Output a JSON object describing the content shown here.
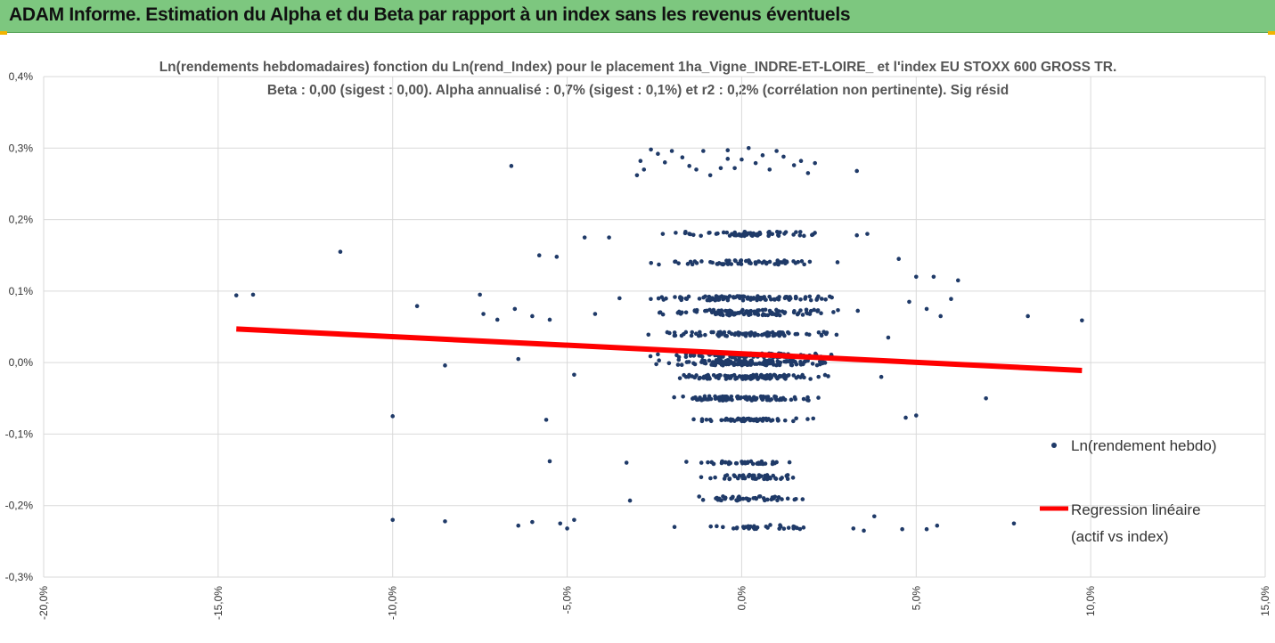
{
  "banner": {
    "title": "ADAM Informe. Estimation du Alpha et du Beta par rapport à un index sans les revenus éventuels",
    "accent": "#f2b400",
    "background": "#7dc77f"
  },
  "chart_data": {
    "type": "scatter",
    "title": "Ln(rendements hebdomadaires) fonction du Ln(rend_Index) pour le placement 1ha_Vigne_INDRE-ET-LOIRE_ et l'index EU STOXX 600 GROSS TR.",
    "subtitle": "Beta : 0,00 (sigest : 0,00). Alpha annualisé : 0,7% (sigest : 0,1%) et r2 : 0,2% (corrélation non pertinente). Sig résid",
    "xlabel": "",
    "ylabel": "",
    "xlim": [
      -0.2,
      0.15
    ],
    "ylim": [
      -0.003,
      0.004
    ],
    "x_ticks": [
      "-20,0%",
      "-15,0%",
      "-10,0%",
      "-5,0%",
      "0,0%",
      "5,0%",
      "10,0%",
      "15,0%"
    ],
    "y_ticks": [
      "0,4%",
      "0,3%",
      "0,2%",
      "0,1%",
      "0,0%",
      "-0,1%",
      "-0,2%",
      "-0,3%"
    ],
    "grid": true,
    "legend_position": "right",
    "series": [
      {
        "name": "Ln(rendement hebdo)",
        "kind": "scatter",
        "color": "#1f3a68",
        "points": [
          [
            -0.1448,
            0.00094
          ],
          [
            -0.14,
            0.00095
          ],
          [
            -0.115,
            0.00155
          ],
          [
            -0.093,
            0.00079
          ],
          [
            -0.085,
            -4e-05
          ],
          [
            -0.1,
            -0.00075
          ],
          [
            -0.1,
            -0.0022
          ],
          [
            -0.085,
            -0.00222
          ],
          [
            -0.075,
            0.00095
          ],
          [
            -0.074,
            0.00068
          ],
          [
            -0.07,
            0.0006
          ],
          [
            -0.065,
            0.00075
          ],
          [
            -0.06,
            0.00065
          ],
          [
            -0.058,
            0.0015
          ],
          [
            -0.055,
            0.0006
          ],
          [
            -0.053,
            0.00148
          ],
          [
            -0.064,
            5e-05
          ],
          [
            -0.066,
            0.00275
          ],
          [
            -0.055,
            -0.00138
          ],
          [
            -0.056,
            -0.0008
          ],
          [
            -0.048,
            -0.00017
          ],
          [
            -0.045,
            0.00175
          ],
          [
            -0.048,
            -0.0022
          ],
          [
            -0.052,
            -0.00225
          ],
          [
            -0.05,
            -0.00232
          ],
          [
            -0.064,
            -0.00228
          ],
          [
            -0.06,
            -0.00223
          ],
          [
            -0.042,
            0.00068
          ],
          [
            -0.038,
            0.00175
          ],
          [
            -0.035,
            0.0009
          ],
          [
            -0.033,
            -0.0014
          ],
          [
            -0.032,
            -0.00193
          ],
          [
            -0.03,
            0.00262
          ],
          [
            -0.029,
            0.00282
          ],
          [
            -0.028,
            0.0027
          ],
          [
            -0.026,
            0.00298
          ],
          [
            -0.024,
            0.00292
          ],
          [
            -0.022,
            0.0028
          ],
          [
            -0.02,
            0.00296
          ],
          [
            -0.017,
            0.00287
          ],
          [
            -0.015,
            0.00275
          ],
          [
            -0.013,
            0.0027
          ],
          [
            -0.011,
            0.00296
          ],
          [
            -0.009,
            0.00262
          ],
          [
            -0.006,
            0.00272
          ],
          [
            -0.004,
            0.00297
          ],
          [
            -0.002,
            0.00272
          ],
          [
            0.0,
            0.00284
          ],
          [
            0.002,
            0.003
          ],
          [
            0.004,
            0.00279
          ],
          [
            0.006,
            0.0029
          ],
          [
            0.008,
            0.0027
          ],
          [
            0.01,
            0.00296
          ],
          [
            0.012,
            0.00288
          ],
          [
            0.015,
            0.00276
          ],
          [
            0.017,
            0.00282
          ],
          [
            0.019,
            0.00265
          ],
          [
            0.021,
            0.00279
          ],
          [
            0.033,
            0.00268
          ],
          [
            -0.004,
            0.00285
          ],
          [
            0.045,
            0.00145
          ],
          [
            0.05,
            0.0012
          ],
          [
            0.055,
            0.0012
          ],
          [
            0.062,
            0.00115
          ],
          [
            0.06,
            0.00089
          ],
          [
            0.053,
            0.00075
          ],
          [
            0.057,
            0.00065
          ],
          [
            0.048,
            0.00085
          ],
          [
            0.05,
            -0.00074
          ],
          [
            0.047,
            -0.00077
          ],
          [
            0.046,
            -0.00233
          ],
          [
            0.053,
            -0.00233
          ],
          [
            0.056,
            -0.00228
          ],
          [
            0.07,
            -0.0005
          ],
          [
            0.078,
            -0.00225
          ],
          [
            0.082,
            0.00065
          ],
          [
            0.0975,
            0.00059
          ],
          [
            0.038,
            -0.00215
          ],
          [
            0.04,
            -0.0002
          ],
          [
            0.042,
            0.00035
          ],
          [
            0.036,
            0.0018
          ],
          [
            0.033,
            0.00178
          ],
          [
            0.035,
            -0.00235
          ],
          [
            0.032,
            -0.00232
          ]
        ]
      },
      {
        "name": "Regression linéaire (actif vs index)",
        "legend_lines": [
          "Regression linéaire",
          "(actif vs index)"
        ],
        "kind": "line",
        "color": "#ff0000",
        "x": [
          -0.1448,
          0.0975
        ],
        "y": [
          0.00047,
          -0.00011
        ]
      }
    ]
  }
}
